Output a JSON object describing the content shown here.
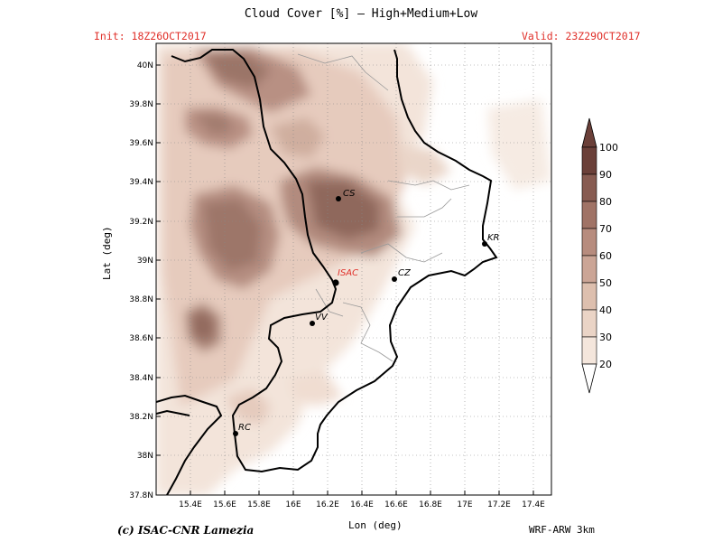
{
  "header": {
    "title": "Cloud Cover [%] — High+Medium+Low",
    "init": "Init: 18Z26OCT2017",
    "valid": "Valid: 23Z29OCT2017"
  },
  "footer": {
    "credit": "(c) ISAC-CNR Lamezia",
    "model": "WRF-ARW 3km"
  },
  "map": {
    "xlabel": "Lon (deg)",
    "ylabel": "Lat (deg)",
    "lon_range": [
      15.25,
      17.55
    ],
    "lat_range": [
      37.8,
      40.07
    ],
    "lon_ticks": [
      "15.4E",
      "15.6E",
      "15.8E",
      "16E",
      "16.2E",
      "16.4E",
      "16.6E",
      "16.8E",
      "17E",
      "17.2E",
      "17.4E"
    ],
    "lat_ticks": [
      "37.8N",
      "38N",
      "38.2N",
      "38.4N",
      "38.6N",
      "38.8N",
      "39N",
      "39.2N",
      "39.4N",
      "39.6N",
      "39.8N",
      "40N"
    ],
    "cities": [
      {
        "label": "CS",
        "highlight": false
      },
      {
        "label": "KR",
        "highlight": false
      },
      {
        "label": "ISAC",
        "highlight": true
      },
      {
        "label": "CZ",
        "highlight": false
      },
      {
        "label": "VV",
        "highlight": false
      },
      {
        "label": "RC",
        "highlight": false
      }
    ]
  },
  "colorbar": {
    "levels": [
      "20",
      "30",
      "40",
      "50",
      "60",
      "70",
      "80",
      "90",
      "100"
    ],
    "colors": [
      "#fbf4ee",
      "#f4e6dc",
      "#ead4c6",
      "#ddbfae",
      "#cba596",
      "#b78c7e",
      "#a07366",
      "#875b51",
      "#6b4039"
    ]
  },
  "colors": {
    "accent": "#e0302a"
  }
}
